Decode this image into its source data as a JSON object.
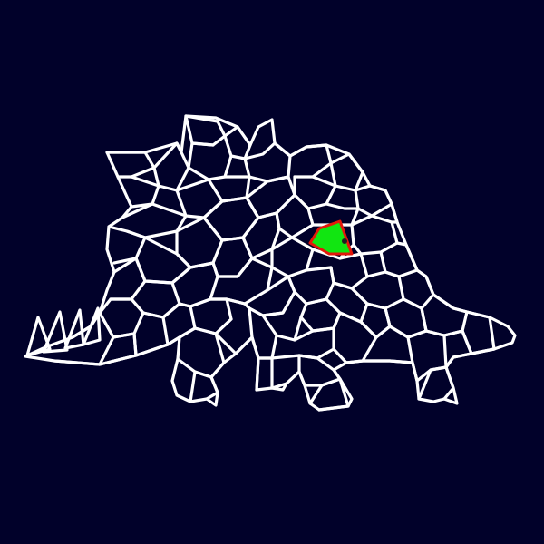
{
  "puzzle": {
    "shape": "stegosaurus",
    "colors": {
      "background": "#01012a",
      "grid_line": "#ffffff",
      "highlight_fill": "#11e611",
      "highlight_border": "#e3170a",
      "marker_dot": "#222222"
    },
    "selected_cell": {
      "state": "filled",
      "marker": "dot"
    }
  }
}
